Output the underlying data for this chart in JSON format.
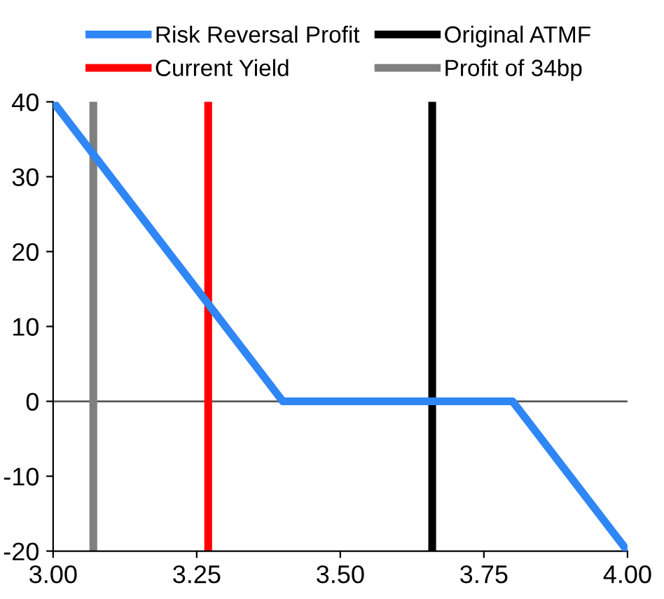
{
  "chart_data": {
    "type": "line",
    "series": [
      {
        "name": "Risk Reversal Profit",
        "color": "#2f86f5",
        "x": [
          3.0,
          3.4,
          3.8,
          4.0
        ],
        "values": [
          40,
          0,
          0,
          -20
        ]
      }
    ],
    "ref_lines": [
      {
        "axis": "x",
        "value": 3.27,
        "label": "Current Yield",
        "color": "#ff0000"
      },
      {
        "axis": "x",
        "value": 3.66,
        "label": "Original ATMF",
        "color": "#000000"
      },
      {
        "axis": "x",
        "value": 3.07,
        "label": "Profit of 34bp",
        "color": "#7f7f7f"
      },
      {
        "axis": "y",
        "value": 0,
        "label": null,
        "color": "#595959"
      }
    ],
    "xlim": [
      3.0,
      4.0
    ],
    "xticks": [
      {
        "value": 3.0,
        "label": "3.00"
      },
      {
        "value": 3.25,
        "label": "3.25"
      },
      {
        "value": 3.5,
        "label": "3.50"
      },
      {
        "value": 3.75,
        "label": "3.75"
      },
      {
        "value": 4.0,
        "label": "4.00"
      }
    ],
    "ylim": [
      -20,
      40
    ],
    "yticks": [
      -20,
      -10,
      0,
      10,
      20,
      30,
      40
    ],
    "grid": false,
    "legend": "top",
    "marker": "none",
    "line_style": "solid"
  }
}
